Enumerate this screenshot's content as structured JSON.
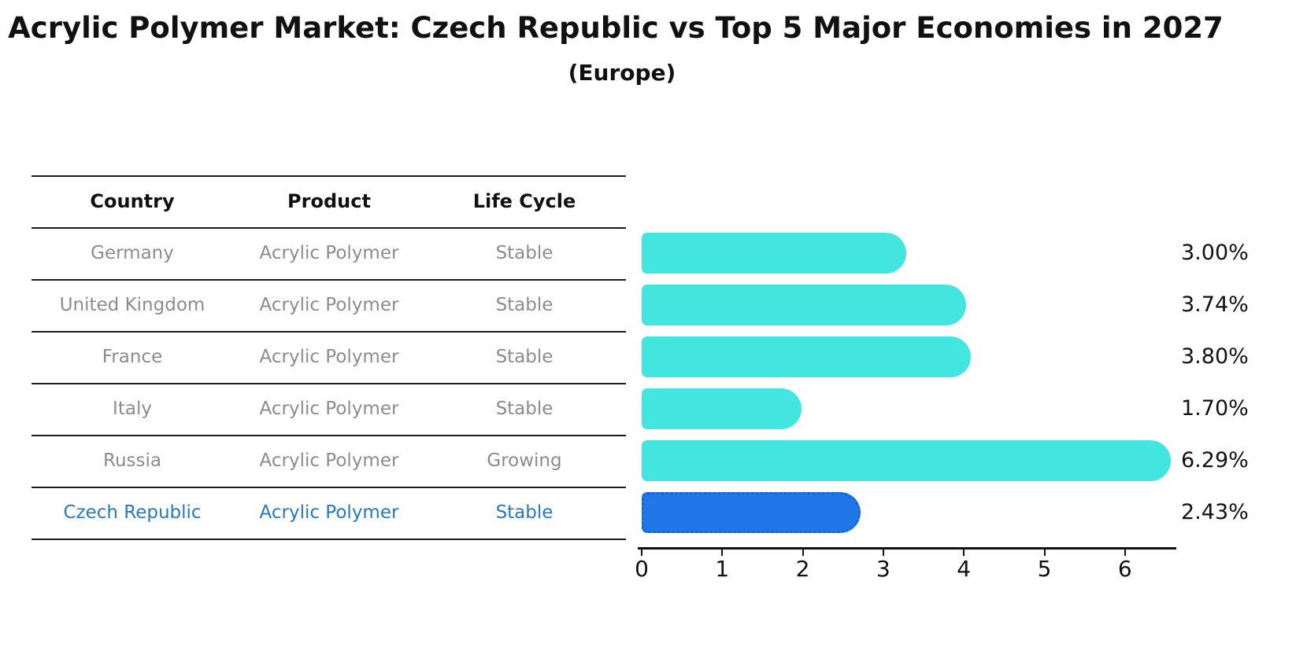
{
  "title": "Acrylic Polymer Market: Czech Republic vs Top 5 Major Economies in 2027",
  "subtitle": "(Europe)",
  "table": {
    "headers": [
      "Country",
      "Product",
      "Life Cycle"
    ],
    "rows": [
      {
        "country": "Germany",
        "product": "Acrylic Polymer",
        "life_cycle": "Stable",
        "highlight": false
      },
      {
        "country": "United Kingdom",
        "product": "Acrylic Polymer",
        "life_cycle": "Stable",
        "highlight": false
      },
      {
        "country": "France",
        "product": "Acrylic Polymer",
        "life_cycle": "Stable",
        "highlight": false
      },
      {
        "country": "Italy",
        "product": "Acrylic Polymer",
        "life_cycle": "Stable",
        "highlight": false
      },
      {
        "country": "Russia",
        "product": "Acrylic Polymer",
        "life_cycle": "Growing",
        "highlight": false
      },
      {
        "country": "Czech Republic",
        "product": "Acrylic Polymer",
        "life_cycle": "Stable",
        "highlight": true
      }
    ]
  },
  "chart_data": {
    "type": "bar",
    "orientation": "horizontal",
    "title": "Acrylic Polymer Market: Czech Republic vs Top 5 Major Economies in 2027",
    "subtitle": "(Europe)",
    "categories": [
      "Germany",
      "United Kingdom",
      "France",
      "Italy",
      "Russia",
      "Czech Republic"
    ],
    "values": [
      3.0,
      3.74,
      3.8,
      1.7,
      6.29,
      2.43
    ],
    "value_labels": [
      "3.00%",
      "3.74%",
      "3.80%",
      "1.70%",
      "6.29%",
      "2.43%"
    ],
    "highlight_index": 5,
    "x_tick_labels": [
      "0",
      "1",
      "2",
      "3",
      "4",
      "5",
      "6"
    ],
    "x_ticks": [
      0,
      1,
      2,
      3,
      4,
      5,
      6
    ],
    "xlim": [
      0,
      6.6
    ],
    "grid": false,
    "legend": "none"
  },
  "colors": {
    "bar": "#43E6DF",
    "highlight_bar": "#2277E8",
    "highlight_bar_border": "#1563D9",
    "row_text": "#8C8C8C",
    "highlight_text": "#2878C0",
    "header_text": "#111111",
    "line": "#1A1A1A",
    "axis": "#111111",
    "background": "#FFFFFF"
  }
}
